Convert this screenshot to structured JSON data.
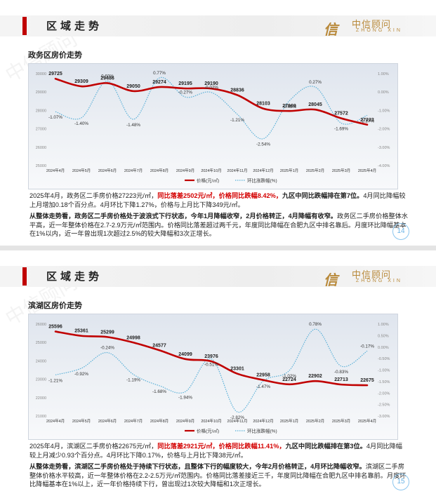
{
  "slides": [
    {
      "header_title": "区域走势",
      "logo": {
        "mark": "信",
        "cn": "中信顾问",
        "en": "ZHONG XIN"
      },
      "section_title": "政务区房价走势",
      "summary": [
        {
          "t": "2025年4月，政务区二手房价格27223元/㎡，",
          "s": "n"
        },
        {
          "t": "同比落差2502元/㎡，价格同比跌幅8.42%，",
          "s": "hl"
        },
        {
          "t": "九区中同比跌幅排在第7位。",
          "s": "bd"
        },
        {
          "t": "4月同比降幅较上月增加0.18个百分点。4月环比下降1.27%，价格与上月比下降349元/㎡。",
          "s": "n"
        }
      ],
      "analysis": [
        {
          "t": "从整体走势看，政务区二手房价格处于波浪式下行状态，今年1月降幅收窄，2月价格转正，4月降幅有收窄。",
          "s": "bd"
        },
        {
          "t": "政务区二手房价格整体水平高，近一年整体价格在2.7-2.9万元/㎡范围内。价格同比落差超过两千元，年度同比降幅在合肥九区中排名靠后。月度环比降幅基本在1%以内，近一年曾出现1次超过2.5%的较大降幅和3次正增长。",
          "s": "n"
        }
      ],
      "page_number": "14",
      "chart_data": {
        "type": "line",
        "categories": [
          "2024年4月",
          "2024年5月",
          "2024年6月",
          "2024年7月",
          "2024年8月",
          "2024年9月",
          "2024年10月",
          "2024年11月",
          "2024年12月",
          "2025年1月",
          "2025年2月",
          "2025年3月",
          "2025年4月"
        ],
        "series": [
          {
            "name": "价格(元/㎡)",
            "axis": "left",
            "color": "#c00000",
            "values": [
              29725,
              29309,
              29486,
              29050,
              29274,
              29195,
              29190,
              28836,
              28103,
              27969,
              28045,
              27572,
              27223
            ]
          },
          {
            "name": "环比涨跌幅(%)",
            "axis": "right",
            "color": "#5ab0d8",
            "dashed": true,
            "values": [
              -1.07,
              -1.4,
              0.6,
              -1.48,
              0.77,
              -0.27,
              -0.02,
              -1.21,
              -2.54,
              -0.48,
              0.27,
              -1.69,
              -1.27
            ]
          }
        ],
        "point_labels_price": [
          "29725",
          "29309",
          "29486",
          "29050",
          "29274",
          "29195",
          "29190",
          "28836",
          "28103",
          "27969",
          "28045",
          "27572",
          "27223"
        ],
        "point_labels_pct": [
          "-1.07%",
          "-1.40%",
          "0.60%",
          "-1.48%",
          "0.77%",
          "-0.27%",
          "-0.02%",
          "-1.21%",
          "-2.54%",
          "-0.48%",
          "0.27%",
          "-1.69%",
          "-1.27%"
        ],
        "ylim_left": [
          25000,
          30000
        ],
        "yticks_left": [
          "30000",
          "29000",
          "28000",
          "27000",
          "26000",
          "25000"
        ],
        "ylim_right": [
          -4.0,
          1.0
        ],
        "yticks_right": [
          "1.00%",
          "0.00%",
          "-1.00%",
          "-2.00%",
          "-3.00%",
          "-4.00%"
        ],
        "legend": [
          "价格(元/㎡)",
          "环比涨跌幅(%)"
        ],
        "legend_position": "bottom"
      }
    },
    {
      "header_title": "区域走势",
      "logo": {
        "mark": "信",
        "cn": "中信顾问",
        "en": "ZHONG XIN"
      },
      "section_title": "滨湖区房价走势",
      "summary": [
        {
          "t": "2025年4月，滨湖区二手房价格22675元/㎡，",
          "s": "n"
        },
        {
          "t": "同比落差2921元/㎡，价格同比跌幅11.41%，",
          "s": "hl"
        },
        {
          "t": "九区中同比跌幅排在第3位。",
          "s": "bd"
        },
        {
          "t": "4月同比降幅较上月减少0.93个百分点。4月环比下降0.17%，价格与上月比下降38元/㎡。",
          "s": "n"
        }
      ],
      "analysis": [
        {
          "t": "从整体走势看，滨湖区二手房价格处于持续下行状态，且整体下行的幅度较大，今年2月价格转正，4月环比降幅收窄。",
          "s": "bd"
        },
        {
          "t": "滨湖区二手房整体价格水平较高，近一年整体价格在2.2-2.5万元/㎡范围内。价格同比落差接近三千，年度同比降幅在合肥九区中排名靠前。月度环比降幅基本在1%以上，近一年价格持续下行，曾出现过1次较大降幅和1次正增长。",
          "s": "n"
        }
      ],
      "page_number": "15",
      "chart_data": {
        "type": "line",
        "categories": [
          "2024年4月",
          "2024年5月",
          "2024年6月",
          "2024年7月",
          "2024年8月",
          "2024年9月",
          "2024年10月",
          "2024年11月",
          "2024年12月",
          "2025年1月",
          "2025年2月",
          "2025年3月",
          "2025年4月"
        ],
        "series": [
          {
            "name": "价格(元/㎡)",
            "axis": "left",
            "color": "#c00000",
            "values": [
              25596,
              25361,
              25299,
              24998,
              24577,
              24099,
              23976,
              23301,
              22958,
              22724,
              22902,
              22713,
              22675
            ]
          },
          {
            "name": "环比涨跌幅(%)",
            "axis": "right",
            "color": "#5ab0d8",
            "dashed": true,
            "values": [
              -1.21,
              -0.92,
              -0.24,
              -1.19,
              -1.68,
              -1.94,
              -0.51,
              -2.82,
              -1.47,
              -1.02,
              0.78,
              -0.83,
              -0.17
            ]
          }
        ],
        "point_labels_price": [
          "25596",
          "25361",
          "25299",
          "24998",
          "24577",
          "24099",
          "23976",
          "23301",
          "22958",
          "22724",
          "22902",
          "22713",
          "22675"
        ],
        "point_labels_pct": [
          "-1.21%",
          "-0.92%",
          "-0.24%",
          "-1.19%",
          "-1.68%",
          "-1.94%",
          "-0.51%",
          "-2.82%",
          "-1.47%",
          "-1.02%",
          "0.78%",
          "-0.83%",
          "-0.17%"
        ],
        "ylim_left": [
          21000,
          26000
        ],
        "yticks_left": [
          "26000",
          "25000",
          "24000",
          "23000",
          "22000",
          "21000"
        ],
        "ylim_right": [
          -3.0,
          1.0
        ],
        "yticks_right": [
          "1.00%",
          "0.50%",
          "0.00%",
          "-0.50%",
          "-1.00%",
          "-1.50%",
          "-2.00%",
          "-2.50%",
          "-3.00%"
        ],
        "legend": [
          "价格(元/㎡)",
          "环比涨跌幅(%)"
        ],
        "legend_position": "bottom"
      }
    }
  ],
  "watermark": "中信顾问"
}
